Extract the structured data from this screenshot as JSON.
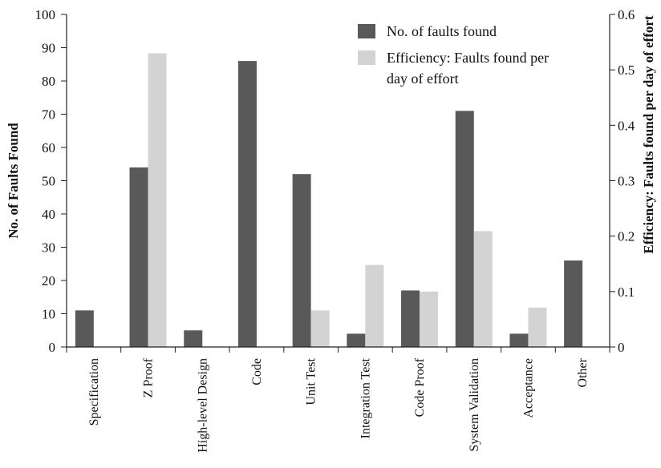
{
  "chart_data": {
    "type": "bar",
    "categories": [
      "Specification",
      "Z Proof",
      "High-level Design",
      "Code",
      "Unit Test",
      "Integration Test",
      "Code Proof",
      "System Validation",
      "Acceptance",
      "Other"
    ],
    "series": [
      {
        "name": "No. of faults found",
        "axis": "left",
        "color": "#595959",
        "values": [
          11,
          54,
          5,
          86,
          52,
          4,
          17,
          71,
          4,
          26
        ]
      },
      {
        "name": "Efficiency: Faults found per day of effort",
        "axis": "right",
        "color": "#d3d3d3",
        "values": [
          null,
          0.53,
          null,
          null,
          0.066,
          0.148,
          0.1,
          0.209,
          0.071,
          null
        ]
      }
    ],
    "ylabel": "No. of Faults Found",
    "ylabel_right": "Efficiency: Faults found per day of effort",
    "ylim": [
      0,
      100
    ],
    "yticks": [
      0,
      10,
      20,
      30,
      40,
      50,
      60,
      70,
      80,
      90,
      100
    ],
    "ylim_right": [
      0,
      0.6
    ],
    "yticks_right": [
      "0",
      "0.1",
      "0.2",
      "0.3",
      "0.4",
      "0.5",
      "0.6"
    ],
    "legend": {
      "placement": "top-right",
      "items": [
        {
          "label_lines": [
            "No. of faults found"
          ],
          "color": "#595959"
        },
        {
          "label_lines": [
            "Efficiency: Faults found per",
            "day of effort"
          ],
          "color": "#d3d3d3"
        }
      ]
    },
    "grid": false
  }
}
